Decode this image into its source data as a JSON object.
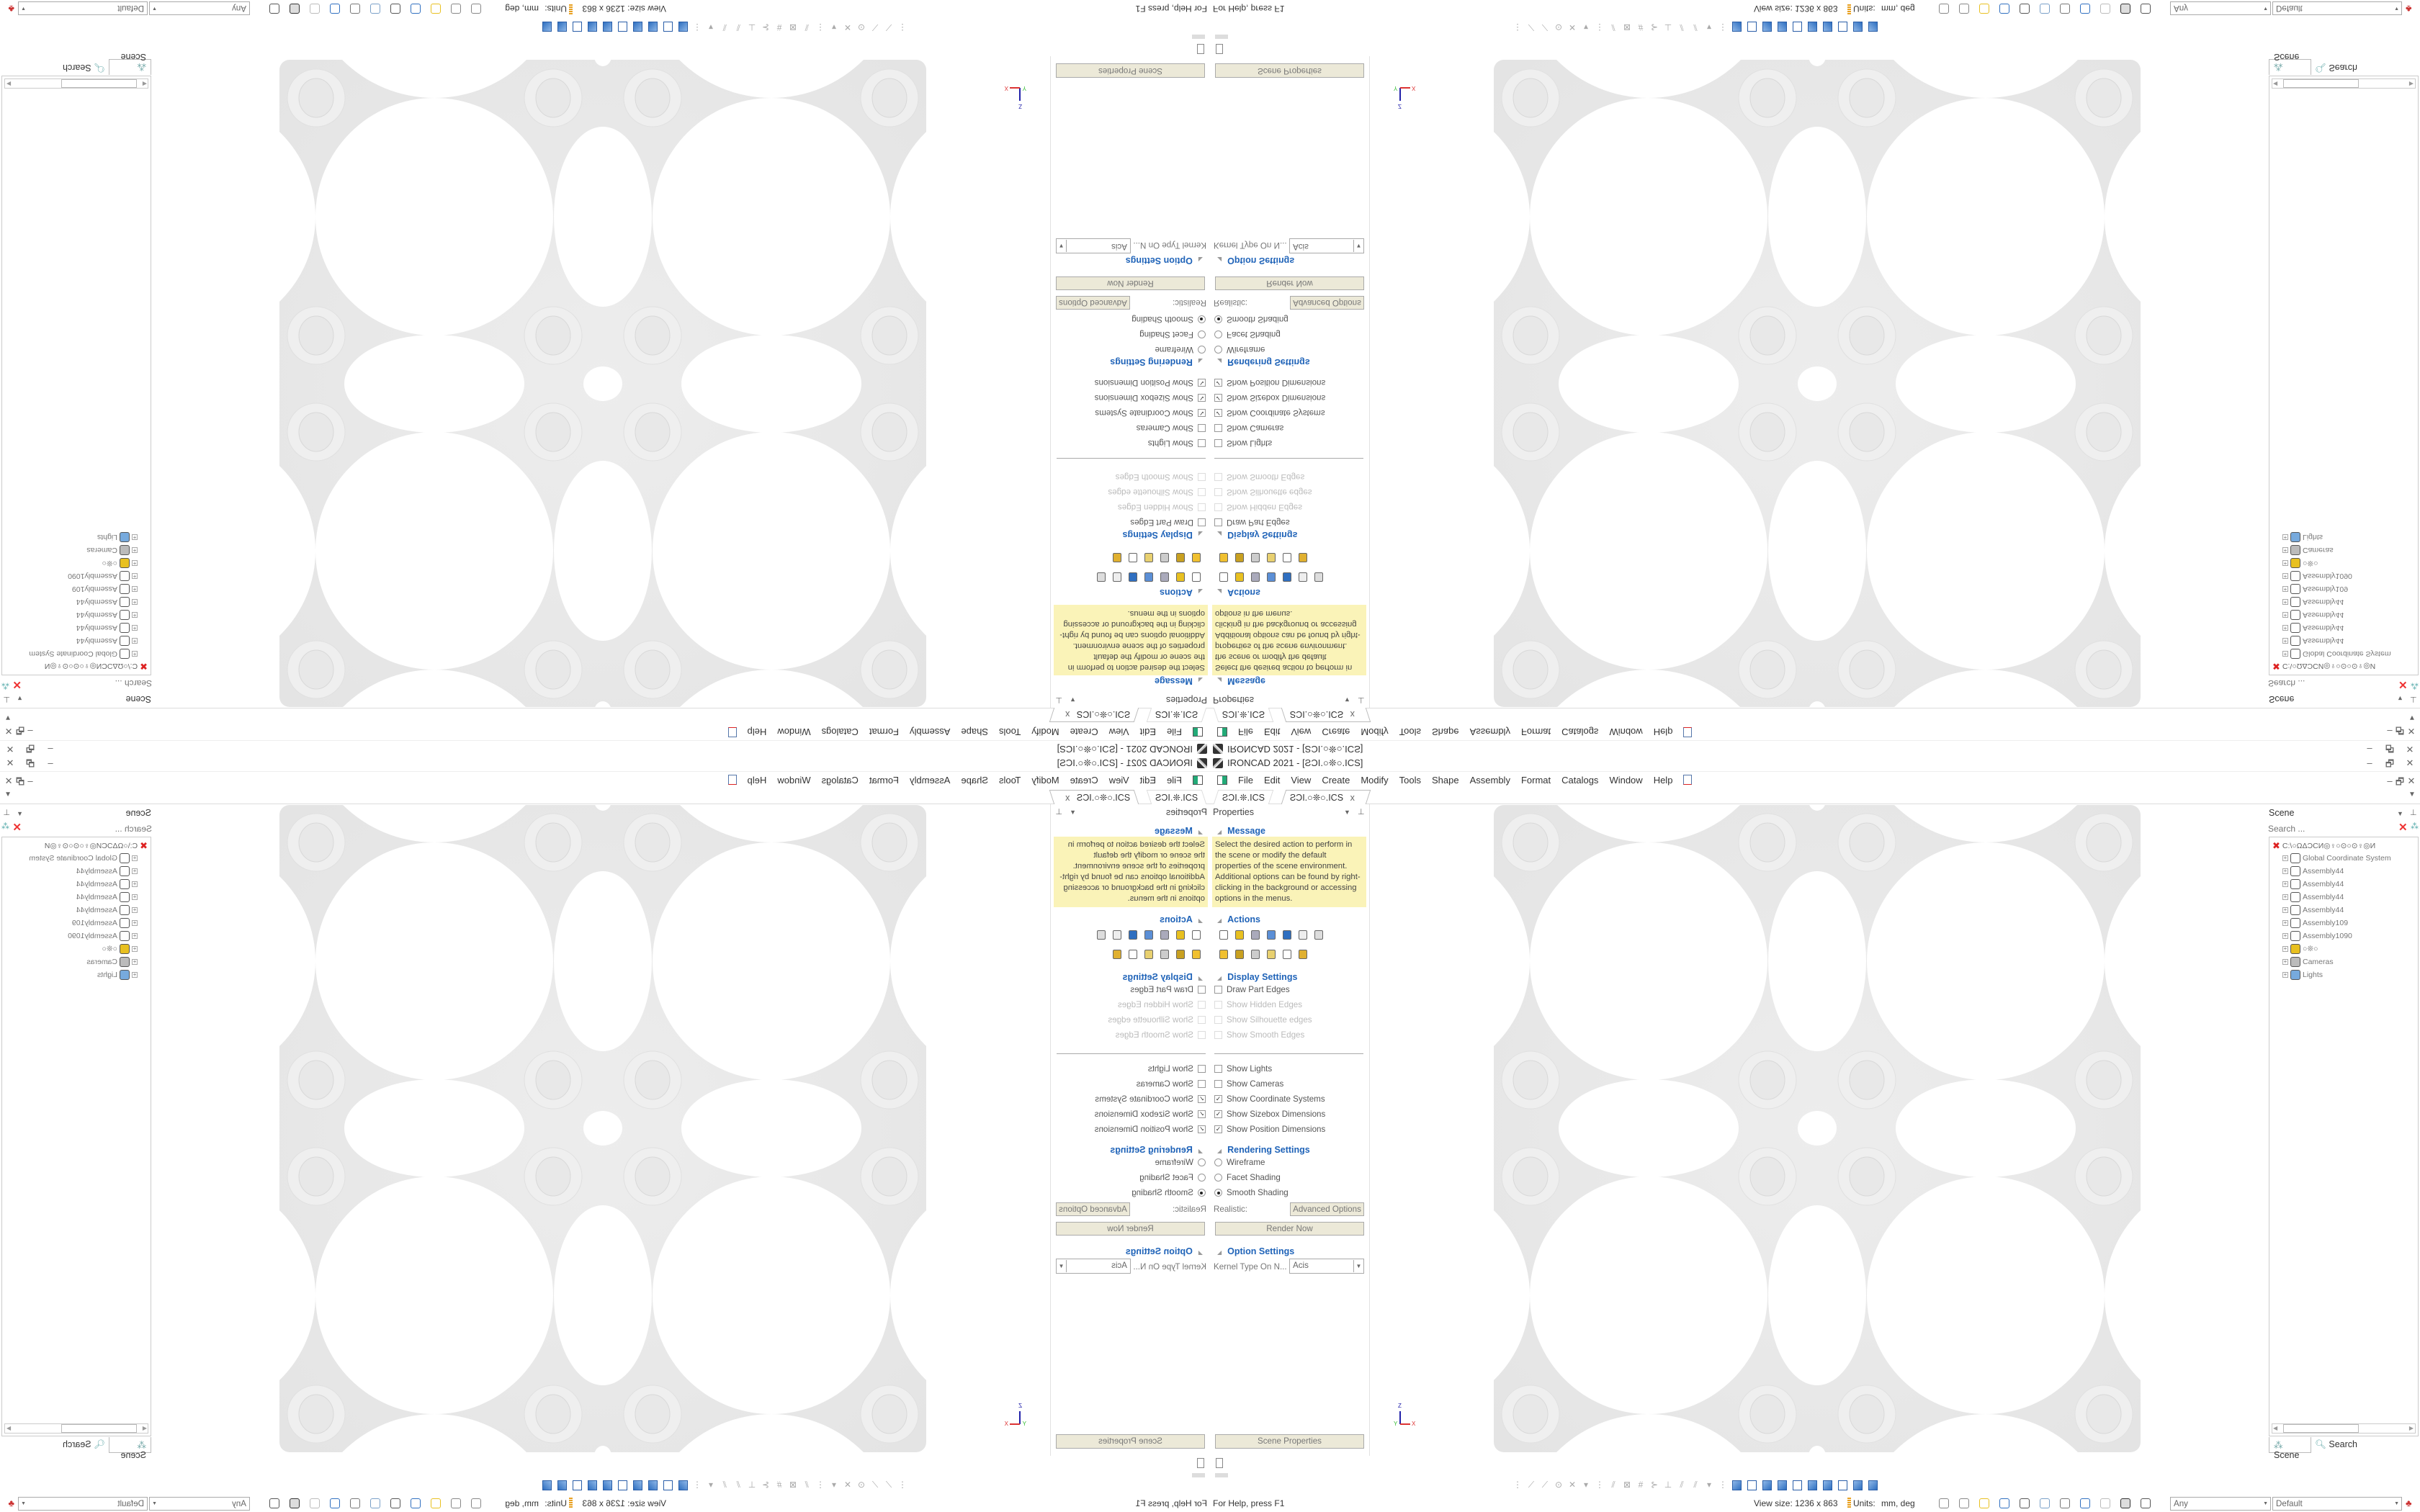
{
  "window": {
    "title": "IRONCAD 2021 - [ƧƆI.○❊○.ICS]",
    "minimize": "–",
    "restore": "🗗",
    "close": "✕"
  },
  "menu": {
    "items": [
      "File",
      "Edit",
      "View",
      "Create",
      "Modify",
      "Tools",
      "Shape",
      "Assembly",
      "Format",
      "Catalogs",
      "Window",
      "Help"
    ]
  },
  "tabs": [
    {
      "label": "ƧƆI.❊.ICS"
    },
    {
      "label": "ƧƆI.○❊○.ICS",
      "close": "x"
    }
  ],
  "properties": {
    "title": "Properties",
    "message": {
      "header": "Message",
      "text": "Select the desired action to perform in the scene or modify the default properties of the scene environment. Additional options can be found by right-clicking in the background or accessing options in the menus."
    },
    "actions": {
      "header": "Actions",
      "icons": [
        "list-icon",
        "part-icon",
        "render-icon",
        "arrow-part-icon",
        "shield-icon",
        "edit-icon",
        "chart-icon",
        "cube-icon",
        "gear-icon",
        "table-icon",
        "assembly-icon",
        "axis-icon",
        "stack-icon"
      ]
    },
    "display": {
      "header": "Display Settings",
      "options": [
        {
          "label": "Draw Part Edges",
          "checked": false,
          "enabled": true
        },
        {
          "label": "Show Hidden Edges",
          "checked": false,
          "enabled": false
        },
        {
          "label": "Show Silhouette edges",
          "checked": false,
          "enabled": false
        },
        {
          "label": "Show Smooth Edges",
          "checked": false,
          "enabled": false
        },
        {
          "label": "Show Lights",
          "checked": false,
          "enabled": true
        },
        {
          "label": "Show Cameras",
          "checked": false,
          "enabled": true
        },
        {
          "label": "Show Coordinate Systems",
          "checked": true,
          "enabled": true
        },
        {
          "label": "Show Sizebox Dimensions",
          "checked": true,
          "enabled": true
        },
        {
          "label": "Show Position Dimensions",
          "checked": true,
          "enabled": true
        }
      ]
    },
    "rendering": {
      "header": "Rendering Settings",
      "options": [
        {
          "label": "Wireframe",
          "selected": false
        },
        {
          "label": "Facet Shading",
          "selected": false
        },
        {
          "label": "Smooth Shading",
          "selected": true
        }
      ],
      "realistic_label": "Realistic:",
      "advanced_button": "Advanced Options",
      "render_button": "Render Now"
    },
    "option_settings": {
      "header": "Option Settings",
      "kernel_label": "Kernel Type On N...",
      "kernel_value": "Acis"
    },
    "scene_properties_button": "Scene Properties"
  },
  "scene": {
    "title": "Scene",
    "search_placeholder": "Search ...",
    "root": "C:\\○ΩΔƆCИ◎♀○⊙○⊙♀◎И",
    "items": [
      "Global Coordinate System",
      "Assembly44",
      "Assembly44",
      "Assembly44",
      "Assembly44",
      "Assembly109",
      "Assembly1090",
      "○❊○",
      "Cameras",
      "Lights"
    ],
    "tabs": [
      "Scene",
      "Search"
    ]
  },
  "viewport": {
    "axis_z": "Z",
    "axis_x": "X",
    "axis_y": "Y"
  },
  "status": {
    "help": "For Help, press F1",
    "view_size": "View size: 1236 x 863",
    "units_label": "Units:",
    "units_value": "mm, deg",
    "filter_value": "Any",
    "style_value": "Default"
  },
  "colors": {
    "header_blue": "#1f63b8",
    "message_bg": "#faf3b8",
    "button_bg": "#ece9d8",
    "model_gray": "#e9e9e9",
    "cube_blue": "#2f6fc0"
  }
}
